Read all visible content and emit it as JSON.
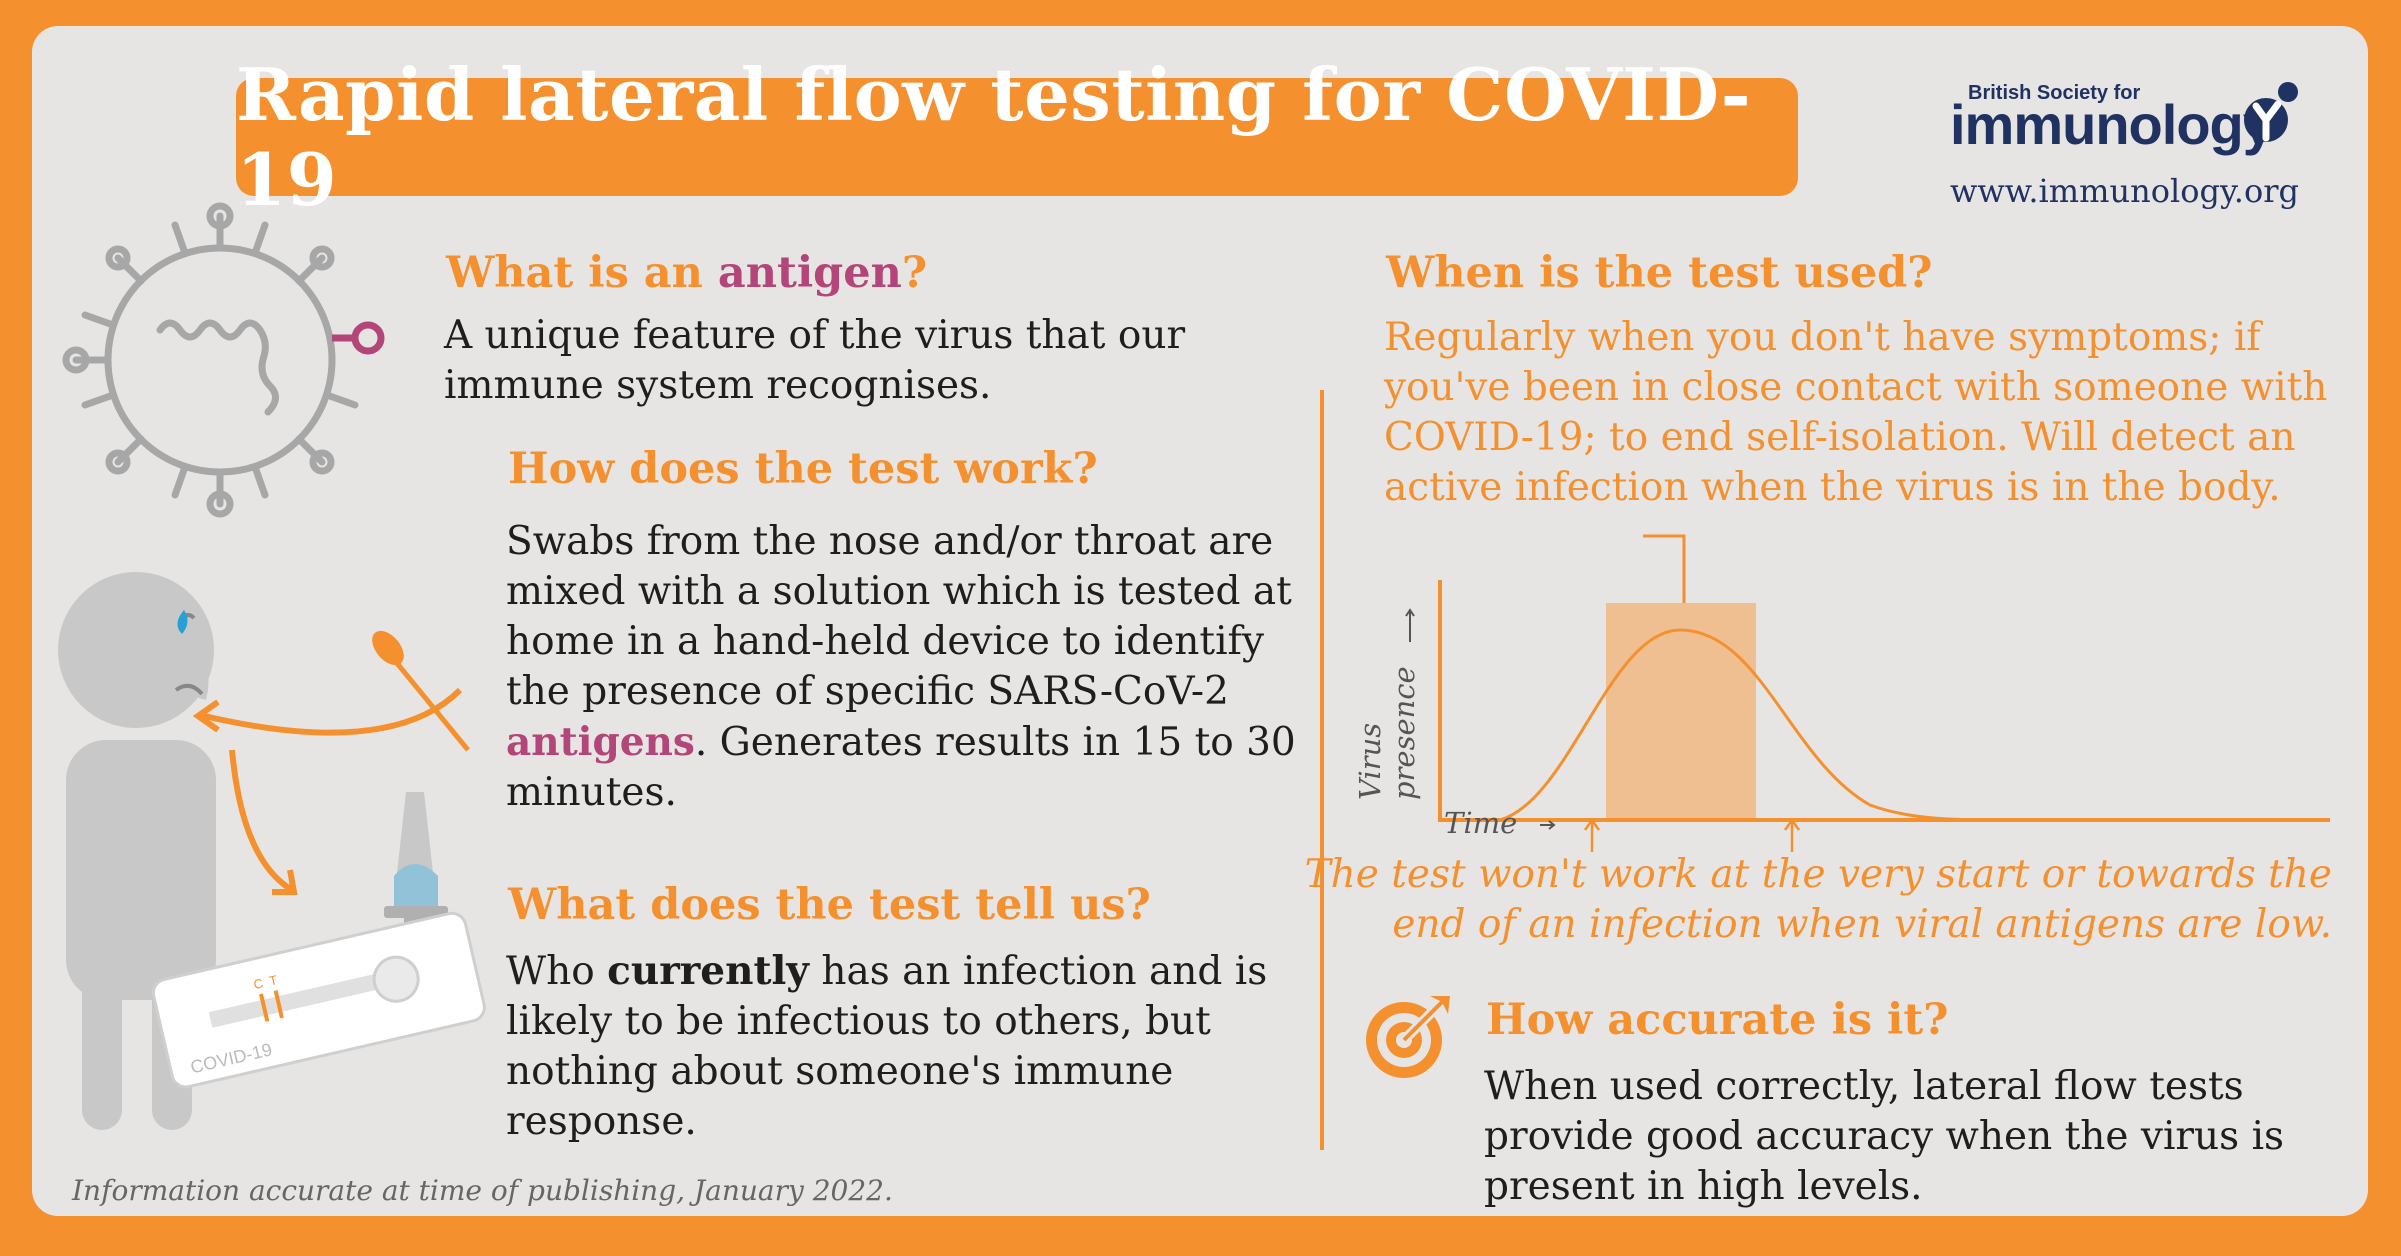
{
  "title": "Rapid lateral flow testing for COVID-19",
  "logo": {
    "small": "British Society for",
    "big": "immunology",
    "url": "www.immunology.org"
  },
  "antigen": {
    "heading_prefix": "What is an ",
    "heading_keyword": "antigen",
    "heading_suffix": "?",
    "body": "A unique feature of the virus that our immune system recognises."
  },
  "how_work": {
    "heading": "How does the test work?",
    "body_before": "Swabs from the nose and/or throat are mixed with a solution which is tested at home in a hand-held device to identify the presence of specific SARS-CoV-2 ",
    "body_keyword": "antigens",
    "body_after": ". Generates results in 15 to 30 minutes."
  },
  "tell_us": {
    "heading": "What does the test tell us?",
    "body_before": "Who ",
    "body_bold": "currently",
    "body_after": " has an infection and is likely to be infectious to others, but nothing about someone's immune response."
  },
  "when_used": {
    "heading": "When is the test used?",
    "body": "Regularly when you don't have symptoms; if you've been in close contact with someone with COVID-19; to end self-isolation. Will detect an active infection when the virus is in the body."
  },
  "graph": {
    "y_label_line1": "Virus",
    "y_label_line2": "presence",
    "x_label": "Time",
    "note_line1": "The test won't work at the very start or towards the",
    "note_line2": "end of an infection when viral antigens are low."
  },
  "accuracy": {
    "heading": "How accurate is it?",
    "body": "When used correctly, lateral flow tests provide good accuracy when the virus is present in high levels."
  },
  "device": {
    "label": "COVID-19",
    "c_label": "C",
    "t_label": "T"
  },
  "footer": "Information accurate at time of publishing, January 2022.",
  "icons": [
    "virus-icon",
    "person-icon",
    "swab-icon",
    "test-device-icon",
    "dropper-icon",
    "target-icon"
  ],
  "colors": {
    "accent": "#f5902f",
    "pink": "#b34579",
    "navy": "#1f3262",
    "panel": "#e6e5e3",
    "figure_grey": "#c8c8c8"
  }
}
